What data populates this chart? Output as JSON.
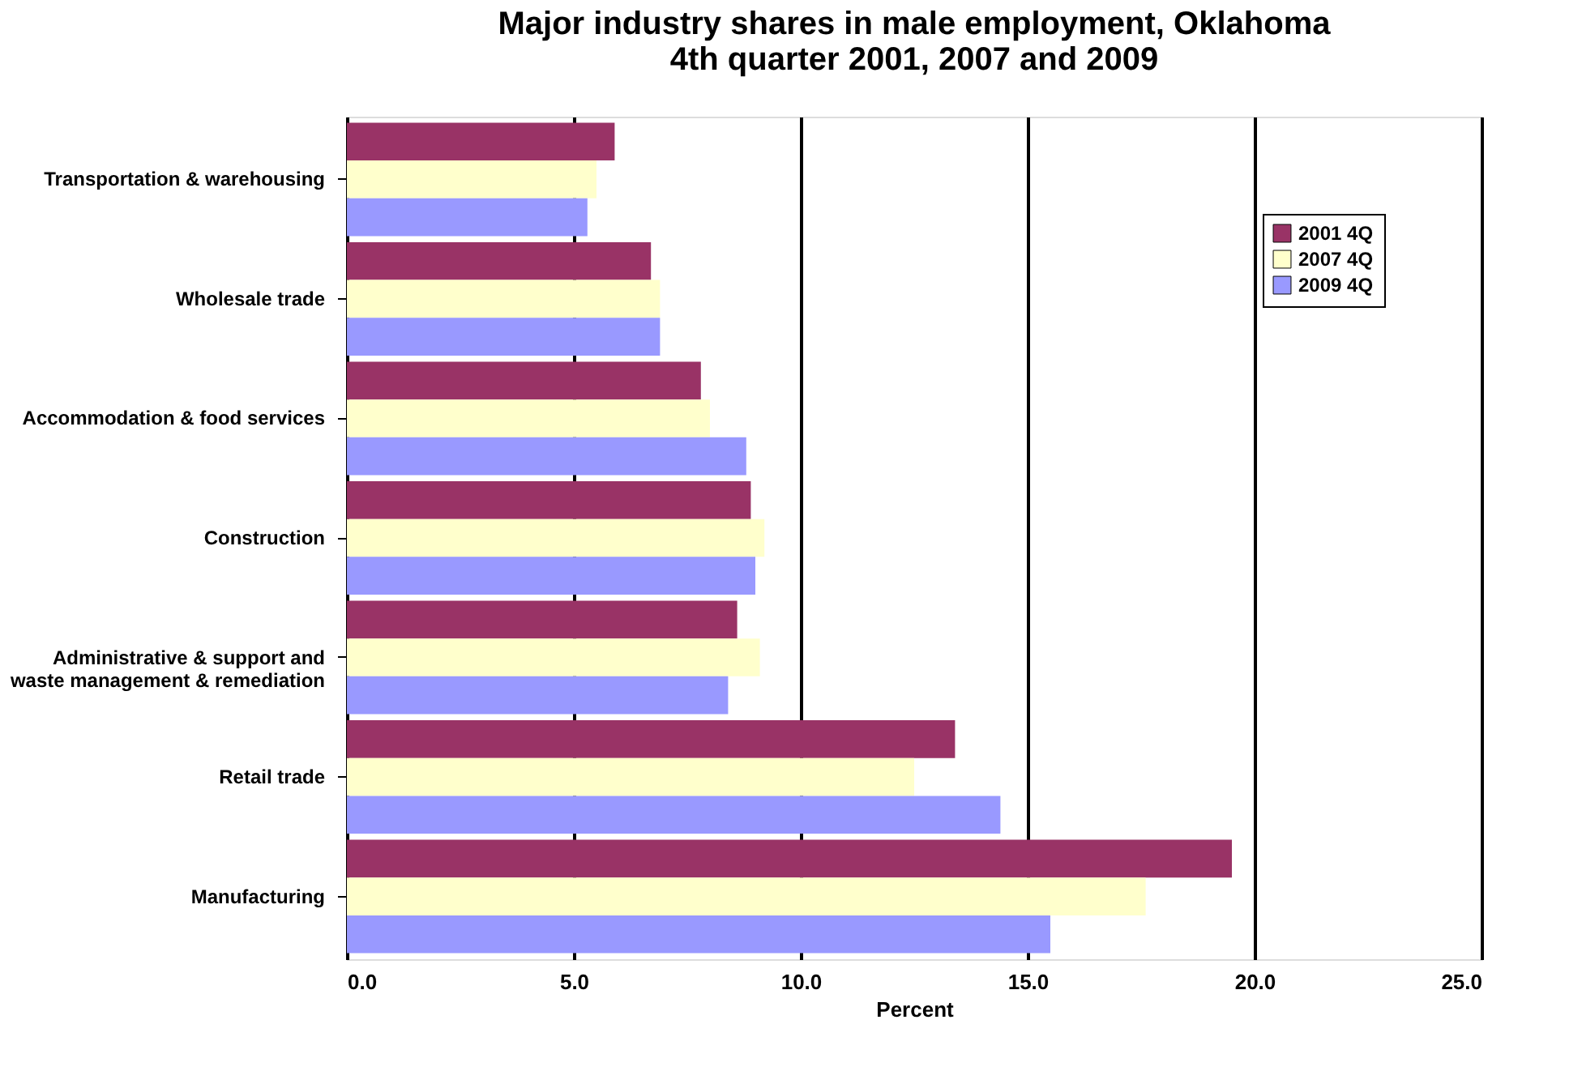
{
  "chart_data": {
    "type": "bar",
    "orientation": "horizontal",
    "title": "Major industry shares in male employment, Oklahoma\n4th quarter 2001, 2007 and 2009",
    "xlabel": "Percent",
    "categories": [
      "Transportation & warehousing",
      "Wholesale trade",
      "Accommodation & food services",
      "Construction",
      "Administrative & support and\nwaste management & remediation",
      "Retail trade",
      "Manufacturing"
    ],
    "series": [
      {
        "name": "2001 4Q",
        "color": "#993366",
        "values": [
          5.9,
          6.7,
          7.8,
          8.9,
          8.6,
          13.4,
          19.5
        ]
      },
      {
        "name": "2007 4Q",
        "color": "#ffffcc",
        "values": [
          5.5,
          6.9,
          8.0,
          9.2,
          9.1,
          12.5,
          17.6
        ]
      },
      {
        "name": "2009 4Q",
        "color": "#9999ff",
        "values": [
          5.3,
          6.9,
          8.8,
          9.0,
          8.4,
          14.4,
          15.5
        ]
      }
    ],
    "xlim": [
      0,
      25
    ],
    "xticks": [
      {
        "value": 0,
        "label": "0.0"
      },
      {
        "value": 5,
        "label": "5.0"
      },
      {
        "value": 10,
        "label": "10.0"
      },
      {
        "value": 15,
        "label": "15.0"
      },
      {
        "value": 20,
        "label": "20.0"
      },
      {
        "value": 25,
        "label": "25.0"
      }
    ],
    "grid": "x",
    "legend": "top right"
  }
}
